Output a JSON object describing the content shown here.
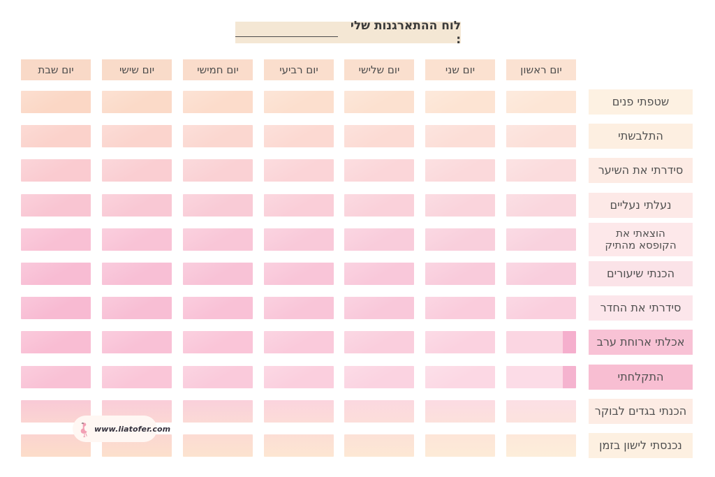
{
  "title": {
    "text": "לוח ההתארגנות שלי :",
    "bg": "#f4e7d4"
  },
  "header": {
    "color_right": "#fbe2d2",
    "color_left": "#f9d9c7"
  },
  "days": [
    "יום ראשון",
    "יום שני",
    "יום שלישי",
    "יום רביעי",
    "יום חמישי",
    "יום שישי",
    "יום שבת"
  ],
  "tasks": [
    {
      "label": "שטפתי פנים",
      "bg": "#fdf1e2"
    },
    {
      "label": "התלבשתי",
      "bg": "#fdefe1"
    },
    {
      "label": "סידרתי את השיער",
      "bg": "#fdebe4"
    },
    {
      "label": "נעלתי נעליים",
      "bg": "#fde9e7"
    },
    {
      "label": "הוצאתי את\nהקופסא מהתיק",
      "bg": "#fde8ea",
      "two_line": true
    },
    {
      "label": "הכנתי שיעורים",
      "bg": "#fbe3e8"
    },
    {
      "label": "סידרתי את החדר",
      "bg": "#fce6eb"
    },
    {
      "label": "אכלתי ארוחת ערב",
      "bg": "#f8c2d5",
      "highlighted": true
    },
    {
      "label": "התקלחתי",
      "bg": "#f8bed2",
      "highlighted": true
    },
    {
      "label": "הכנתי בגדים לבוקר",
      "bg": "#fdece4"
    },
    {
      "label": "נכנסתי לישון בזמן",
      "bg": "#fdf0e1"
    }
  ],
  "row_colors": [
    {
      "left": "#fbd7c5",
      "right": "#fde6d6"
    },
    {
      "left": "#fbd2cb",
      "right": "#fce0d9"
    },
    {
      "left": "#facbd0",
      "right": "#fbdcdd"
    },
    {
      "left": "#f9c5d2",
      "right": "#fad7de"
    },
    {
      "left": "#f9c0d4",
      "right": "#f9d2de"
    },
    {
      "left": "#f8bcd3",
      "right": "#f9cedd"
    },
    {
      "left": "#f8bad2",
      "right": "#facfde"
    },
    {
      "left": "#f9bdd3",
      "right": "#fbd6e2",
      "strip": "#f5afcd"
    },
    {
      "left": "#f9c1d5",
      "right": "#fcdce7",
      "strip": "#f5b3cf"
    },
    {
      "left": "#f9c9d6",
      "right": "#fcdfe5",
      "bottom_left": "#fbd5d2",
      "bottom_right": "#fce3de"
    },
    {
      "left": "#fbd4d0",
      "right": "#fde8da",
      "bottom_left": "#fcddc9",
      "bottom_right": "#fdeeda"
    }
  ],
  "watermark": {
    "text": "www.liatofer.com",
    "icon": "flamingo-icon",
    "icon_color": "#f2a0b5"
  }
}
